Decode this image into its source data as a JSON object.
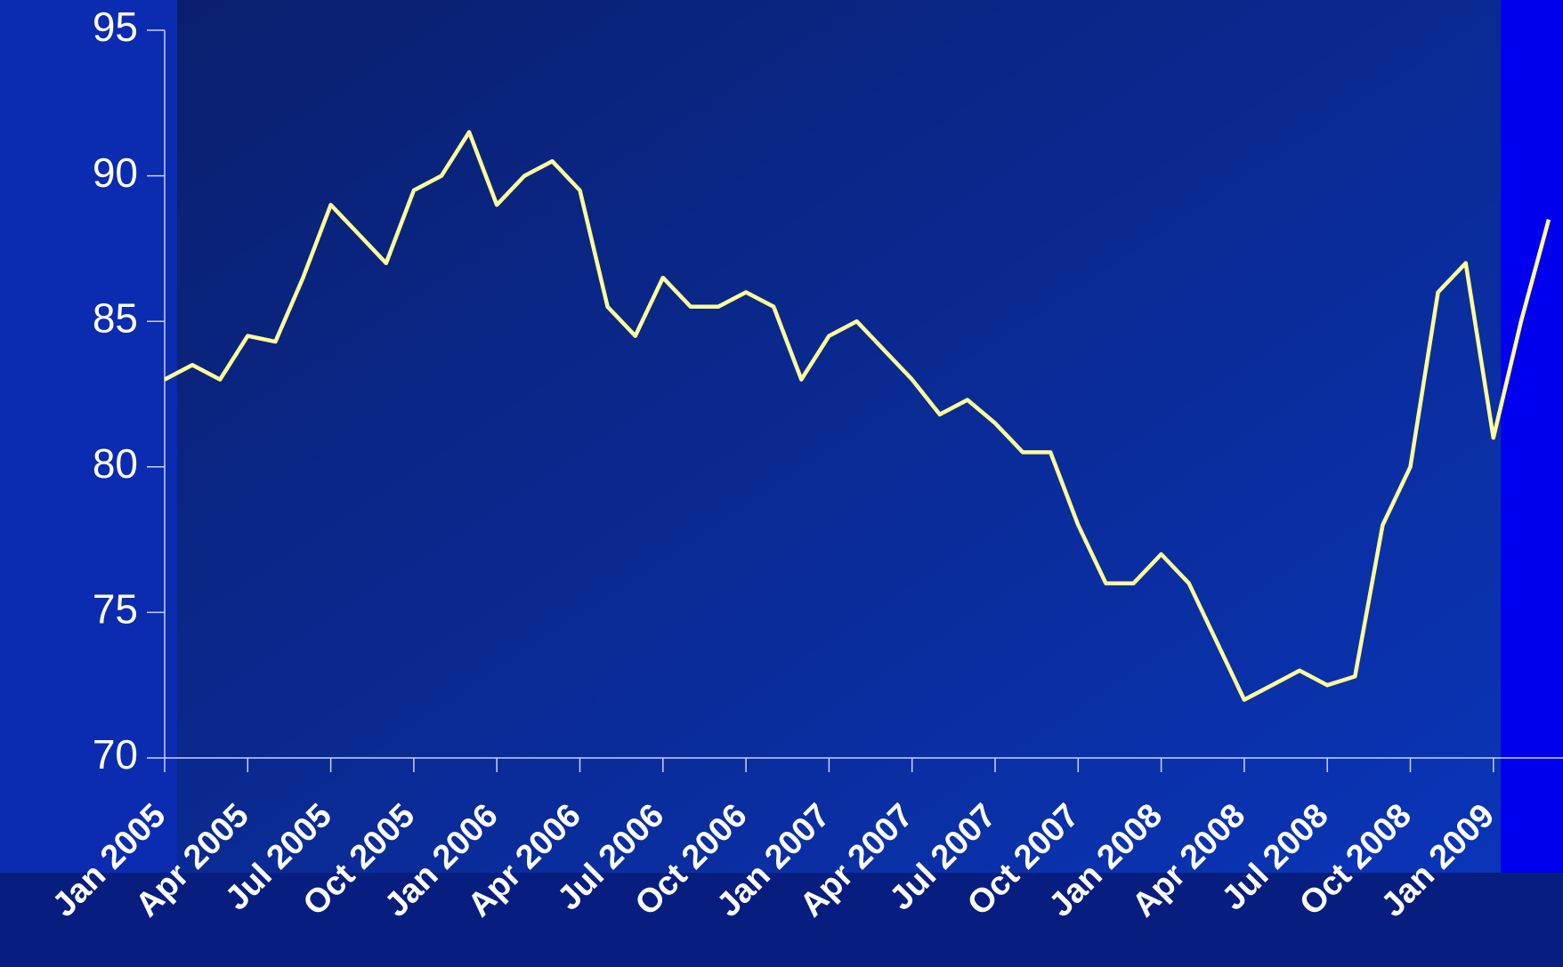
{
  "chart_data": {
    "type": "line",
    "categories": [
      "Jan 2005",
      null,
      null,
      "Apr 2005",
      null,
      null,
      "Jul 2005",
      null,
      null,
      "Oct 2005",
      null,
      null,
      "Jan 2006",
      null,
      null,
      "Apr 2006",
      null,
      null,
      "Jul 2006",
      null,
      null,
      "Oct 2006",
      null,
      null,
      "Jan 2007",
      null,
      null,
      "Apr 2007",
      null,
      null,
      "Jul 2007",
      null,
      null,
      "Oct 2007",
      null,
      null,
      "Jan 2008",
      null,
      null,
      "Apr 2008",
      null,
      null,
      "Jul 2008",
      null,
      null,
      "Oct 2008",
      null,
      null,
      "Jan 2009",
      null,
      null
    ],
    "values": [
      83,
      83.5,
      83,
      84.5,
      84.3,
      86.5,
      89,
      88,
      87,
      89.5,
      90,
      91.5,
      89,
      90,
      90.5,
      89.5,
      85.5,
      84.5,
      86.5,
      85.5,
      85.5,
      86,
      85.5,
      83,
      84.5,
      85,
      84,
      83,
      81.8,
      82.3,
      81.5,
      80.5,
      80.5,
      78,
      76,
      76,
      77,
      76,
      74,
      72,
      72.5,
      73,
      72.5,
      72.8,
      78,
      80,
      86,
      87,
      81,
      85,
      88.5
    ],
    "color": "#ffff99",
    "ylim": [
      70,
      95
    ],
    "yticks": [
      70,
      75,
      80,
      85,
      90,
      95
    ]
  }
}
